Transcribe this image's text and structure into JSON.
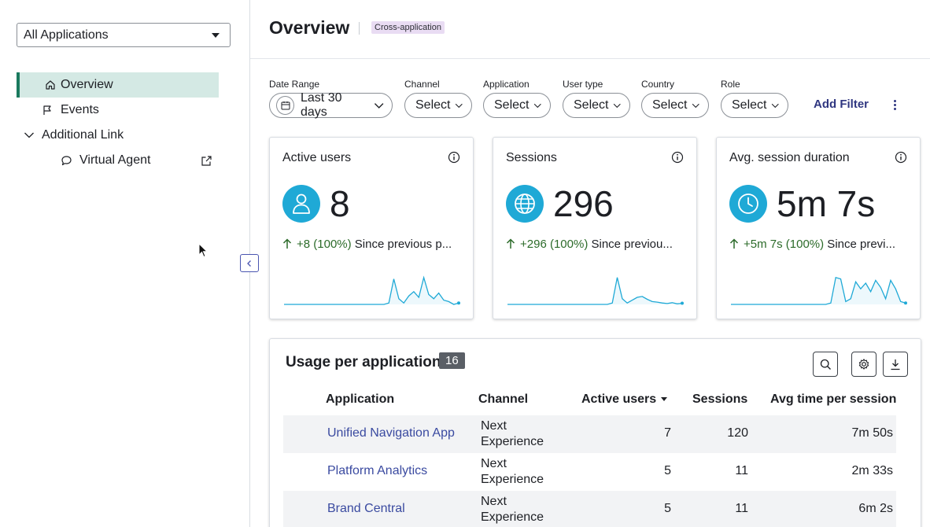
{
  "sidebar": {
    "app_selector": "All Applications",
    "nav": [
      {
        "label": "Overview",
        "icon": "home-icon",
        "active": true
      },
      {
        "label": "Events",
        "icon": "flag-icon"
      },
      {
        "label": "Additional Link",
        "icon": "chevron-down-icon"
      },
      {
        "label": "Virtual Agent",
        "icon": "chat-bubble-icon",
        "trailing_icon": "external-link-icon"
      }
    ]
  },
  "header": {
    "title": "Overview",
    "badge": "Cross-application"
  },
  "filters": [
    {
      "label": "Date Range",
      "value": "Last 30 days",
      "icon": "calendar-icon"
    },
    {
      "label": "Channel",
      "value": "Select"
    },
    {
      "label": "Application",
      "value": "Select"
    },
    {
      "label": "User type",
      "value": "Select"
    },
    {
      "label": "Country",
      "value": "Select"
    },
    {
      "label": "Role",
      "value": "Select"
    }
  ],
  "add_filter": "Add Filter",
  "metrics": [
    {
      "title": "Active users",
      "value": "8",
      "delta": "+8 (100%)",
      "delta_suffix": " Since previous p...",
      "icon": "user-icon",
      "trend": [
        0,
        0,
        0,
        0,
        0,
        0,
        0,
        0,
        0,
        0,
        0,
        0,
        0,
        0,
        0,
        0,
        0,
        0,
        0,
        0,
        0,
        0.05,
        0.9,
        0.2,
        0.05,
        0.3,
        0.45,
        0.25,
        0.95,
        0.35,
        0.2,
        0.4,
        0.15,
        0.1,
        0.0,
        0.05
      ]
    },
    {
      "title": "Sessions",
      "value": "296",
      "delta": "+296 (100%)",
      "delta_suffix": " Since previou...",
      "icon": "globe-icon",
      "trend": [
        0,
        0,
        0,
        0,
        0,
        0,
        0,
        0,
        0,
        0,
        0,
        0,
        0,
        0,
        0,
        0,
        0,
        0,
        0,
        0,
        0,
        0.05,
        0.95,
        0.2,
        0.05,
        0.15,
        0.25,
        0.28,
        0.18,
        0.1,
        0.08,
        0.05,
        0.03,
        0.06,
        0.02,
        0.04
      ]
    },
    {
      "title": "Avg. session duration",
      "value": "5m 7s",
      "delta": "+5m 7s (100%)",
      "delta_suffix": " Since previ...",
      "icon": "clock-icon",
      "trend": [
        0,
        0,
        0,
        0,
        0,
        0,
        0,
        0,
        0,
        0,
        0,
        0,
        0,
        0,
        0,
        0,
        0,
        0,
        0,
        0,
        0.05,
        0.95,
        0.9,
        0.1,
        0.2,
        0.8,
        0.55,
        0.75,
        0.45,
        0.85,
        0.6,
        0.2,
        0.85,
        0.55,
        0.1,
        0.05
      ]
    }
  ],
  "table": {
    "title": "Usage per application",
    "count": "16",
    "columns": [
      "Application",
      "Channel",
      "Active users",
      "Sessions",
      "Avg time per session"
    ],
    "rows": [
      {
        "application": "Unified Navigation App",
        "channel": "Next Experience",
        "active_users": "7",
        "sessions": "120",
        "avg_time": "7m 50s"
      },
      {
        "application": "Platform Analytics",
        "channel": "Next Experience",
        "active_users": "5",
        "sessions": "11",
        "avg_time": "2m 33s"
      },
      {
        "application": "Brand Central",
        "channel": "Next Experience",
        "active_users": "5",
        "sessions": "11",
        "avg_time": "6m 2s"
      }
    ]
  },
  "colors": {
    "accent": "#1fa9d6",
    "nav_active_bg": "#d4e9e4",
    "nav_active_border": "#1a7a5e",
    "link": "#3a4aa0",
    "badge_bg": "#e9dcf3",
    "positive": "#2c6b2a"
  }
}
